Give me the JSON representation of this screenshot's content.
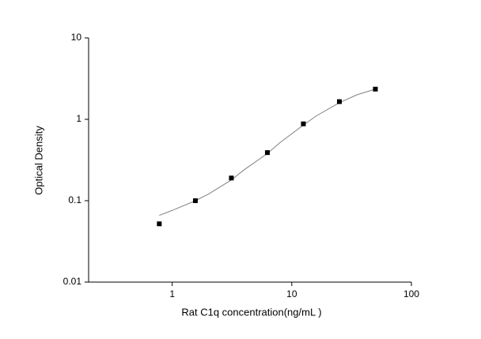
{
  "chart_data": {
    "type": "scatter",
    "x_label": "Rat C1q concentration(ng/mL )",
    "y_label": "Optical Density",
    "x": [
      0.78,
      1.5625,
      3.125,
      6.25,
      12.5,
      25,
      50
    ],
    "values": [
      0.052,
      0.1,
      0.19,
      0.39,
      0.88,
      1.65,
      2.35
    ],
    "color": "#000000",
    "curve": {
      "x": [
        0.78,
        1,
        1.5625,
        2,
        3.125,
        4,
        6.25,
        8,
        12.5,
        16,
        25,
        35,
        50
      ],
      "values": [
        0.066,
        0.076,
        0.1,
        0.12,
        0.18,
        0.24,
        0.38,
        0.52,
        0.85,
        1.1,
        1.6,
        2.0,
        2.35
      ],
      "color": "#808080"
    },
    "xscale": "log",
    "yscale": "log",
    "xlim": [
      0.2,
      100
    ],
    "xticks": [
      1,
      10,
      100
    ],
    "ylim": [
      0.01,
      10
    ],
    "yticks": [
      0.01,
      0.1,
      1,
      10
    ]
  }
}
